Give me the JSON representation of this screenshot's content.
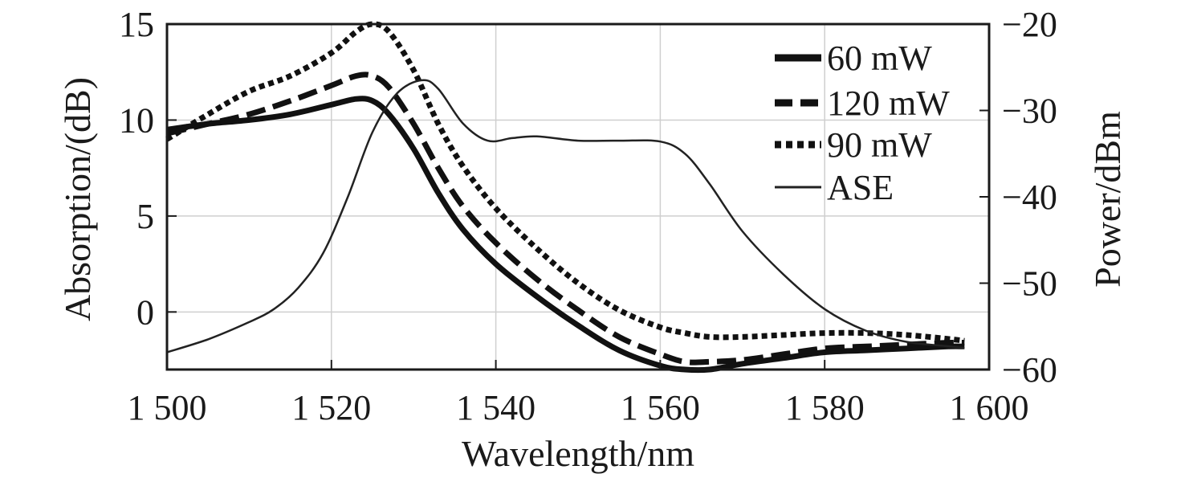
{
  "chart_data": {
    "type": "line",
    "title": "",
    "xlabel": "Wavelength/nm",
    "ylabel_left": "Absorption/(dB)",
    "ylabel_right": "Power/dBm",
    "xlim": [
      1500,
      1600
    ],
    "ylim_left": [
      -3,
      15
    ],
    "ylim_right": [
      -60,
      -20
    ],
    "x_ticks": [
      1500,
      1520,
      1540,
      1560,
      1580,
      1600
    ],
    "x_tick_labels": [
      "1 500",
      "1 520",
      "1 540",
      "1 560",
      "1 580",
      "1 600"
    ],
    "y_left_ticks": [
      0,
      5,
      10,
      15
    ],
    "y_left_tick_labels": [
      "0",
      "5",
      "10",
      "15"
    ],
    "y_right_ticks": [
      -20,
      -30,
      -40,
      -50,
      -60
    ],
    "y_right_tick_labels": [
      "−20",
      "−30",
      "−40",
      "−50",
      "−60"
    ],
    "grid": true,
    "legend_position": "top-right",
    "series": [
      {
        "name": "60 mW",
        "axis": "left",
        "style": "solid-thick",
        "color": "#111111",
        "x": [
          1500,
          1505,
          1510,
          1515,
          1520,
          1523,
          1525,
          1527,
          1530,
          1533,
          1536,
          1540,
          1545,
          1550,
          1555,
          1560,
          1563,
          1566,
          1570,
          1575,
          1580,
          1585,
          1590,
          1595,
          1597
        ],
        "y": [
          9.5,
          9.8,
          10.0,
          10.3,
          10.8,
          11.1,
          11.0,
          10.3,
          8.5,
          6.2,
          4.3,
          2.5,
          0.8,
          -0.7,
          -2.0,
          -2.8,
          -3.0,
          -3.0,
          -2.7,
          -2.4,
          -2.1,
          -2.0,
          -1.9,
          -1.8,
          -1.8
        ]
      },
      {
        "name": "120 mW",
        "axis": "left",
        "style": "dashed-thick",
        "color": "#111111",
        "x": [
          1500,
          1505,
          1510,
          1515,
          1520,
          1523,
          1525,
          1527,
          1530,
          1533,
          1536,
          1540,
          1545,
          1550,
          1555,
          1560,
          1563,
          1566,
          1570,
          1575,
          1580,
          1585,
          1590,
          1595,
          1597
        ],
        "y": [
          9.3,
          9.8,
          10.3,
          11.0,
          11.8,
          12.3,
          12.3,
          11.7,
          9.8,
          7.5,
          5.5,
          3.6,
          1.7,
          0.1,
          -1.3,
          -2.2,
          -2.6,
          -2.6,
          -2.5,
          -2.2,
          -1.9,
          -1.8,
          -1.7,
          -1.6,
          -1.6
        ]
      },
      {
        "name": "90 mW",
        "axis": "left",
        "style": "dotted-thick",
        "color": "#111111",
        "x": [
          1500,
          1505,
          1510,
          1515,
          1520,
          1523,
          1525,
          1527,
          1530,
          1533,
          1536,
          1540,
          1545,
          1550,
          1555,
          1560,
          1563,
          1566,
          1570,
          1575,
          1580,
          1585,
          1590,
          1595,
          1597
        ],
        "y": [
          9.0,
          10.3,
          11.5,
          12.3,
          13.5,
          14.6,
          15.0,
          14.6,
          12.6,
          9.8,
          7.6,
          5.4,
          3.3,
          1.5,
          0.1,
          -0.8,
          -1.1,
          -1.3,
          -1.3,
          -1.2,
          -1.1,
          -1.1,
          -1.2,
          -1.4,
          -1.5
        ]
      },
      {
        "name": "ASE",
        "axis": "right",
        "style": "solid-thin",
        "color": "#222222",
        "x": [
          1500,
          1505,
          1510,
          1513,
          1516,
          1519,
          1522,
          1525,
          1528,
          1531,
          1533,
          1536,
          1539,
          1542,
          1545,
          1550,
          1555,
          1560,
          1563,
          1566,
          1570,
          1575,
          1580,
          1585,
          1590,
          1595,
          1597
        ],
        "y": [
          -58,
          -56.5,
          -54.5,
          -53,
          -50.5,
          -46.5,
          -40,
          -32.5,
          -28,
          -26.5,
          -27.5,
          -31.5,
          -33.5,
          -33.2,
          -33,
          -33.5,
          -33.5,
          -33.6,
          -35,
          -38.5,
          -44,
          -49,
          -53,
          -55.5,
          -56.8,
          -57.3,
          -57.5
        ]
      }
    ]
  }
}
